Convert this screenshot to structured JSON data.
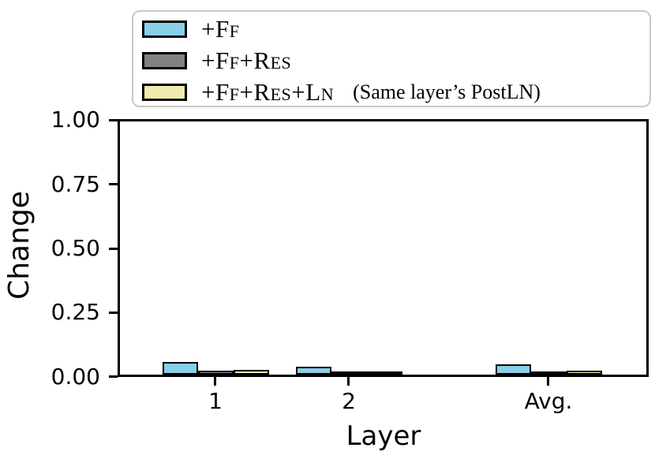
{
  "chart_data": {
    "type": "bar",
    "title": "",
    "xlabel": "Layer",
    "ylabel": "Change",
    "categories": [
      "1",
      "2",
      "Avg."
    ],
    "series": [
      {
        "name": "+FF",
        "display": "+Ff",
        "color": "#89cfe9",
        "values": [
          0.05,
          0.03,
          0.04
        ]
      },
      {
        "name": "+FF+RES",
        "display": "+Ff+Res",
        "color": "#828282",
        "values": [
          0.015,
          0.005,
          0.012
        ]
      },
      {
        "name": "+FF+RES+LN",
        "display": "+Ff+Res+Ln",
        "note": "(Same layer’s PostLN)",
        "color": "#f0ebad",
        "values": [
          0.02,
          0.005,
          0.015
        ]
      }
    ],
    "ylim": [
      0,
      1
    ],
    "yticks": [
      "0.00",
      "0.25",
      "0.50",
      "0.75",
      "1.00"
    ],
    "legend_position": "top-left",
    "grid": false,
    "bar_edge_color": "#000000"
  }
}
